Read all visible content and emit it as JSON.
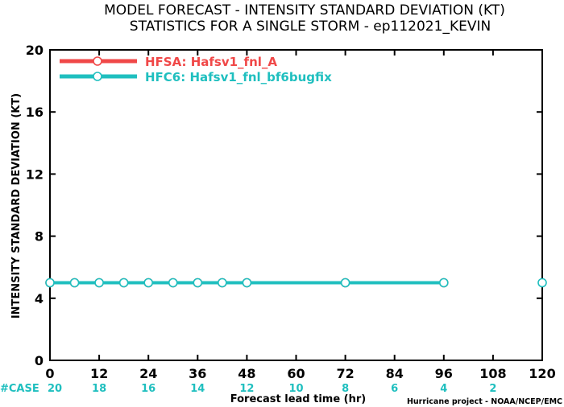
{
  "chart_data": {
    "type": "line",
    "title": "MODEL FORECAST - INTENSITY STANDARD DEVIATION (KT)",
    "subtitle": "STATISTICS FOR A SINGLE STORM - ep112021_KEVIN",
    "xlabel": "Forecast lead time (hr)",
    "ylabel": "INTENSITY STANDARD DEVIATION (KT)",
    "xlim": [
      0,
      120
    ],
    "ylim": [
      0,
      20
    ],
    "xticks": [
      0,
      12,
      24,
      36,
      48,
      60,
      72,
      84,
      96,
      108,
      120
    ],
    "yticks": [
      0,
      4,
      8,
      12,
      16,
      20
    ],
    "legend_position": "top-left",
    "series": [
      {
        "name": "HFSA: Hafsv1_fnl_A",
        "color": "#f04848",
        "x": [
          0,
          6,
          12,
          18,
          24,
          30,
          36,
          42,
          48,
          72,
          96
        ],
        "y": [
          5,
          5,
          5,
          5,
          5,
          5,
          5,
          5,
          5,
          5,
          5
        ]
      },
      {
        "name": "HFC6: Hafsv1_fnl_bf6bugfix",
        "color": "#1fbfbf",
        "x": [
          0,
          6,
          12,
          18,
          24,
          30,
          36,
          42,
          48,
          72,
          96
        ],
        "y": [
          5,
          5,
          5,
          5,
          5,
          5,
          5,
          5,
          5,
          5,
          5
        ]
      }
    ],
    "isolated_points": [
      {
        "x": 120,
        "y": 5,
        "color": "#1fbfbf"
      }
    ],
    "case_label": "#CASE",
    "case_counts": [
      {
        "x": 0,
        "count": "20"
      },
      {
        "x": 12,
        "count": "18"
      },
      {
        "x": 24,
        "count": "16"
      },
      {
        "x": 36,
        "count": "14"
      },
      {
        "x": 48,
        "count": "12"
      },
      {
        "x": 60,
        "count": "10"
      },
      {
        "x": 72,
        "count": "8"
      },
      {
        "x": 84,
        "count": "6"
      },
      {
        "x": 96,
        "count": "4"
      },
      {
        "x": 108,
        "count": "2"
      }
    ]
  },
  "credit": "Hurricane project - NOAA/NCEP/EMC"
}
